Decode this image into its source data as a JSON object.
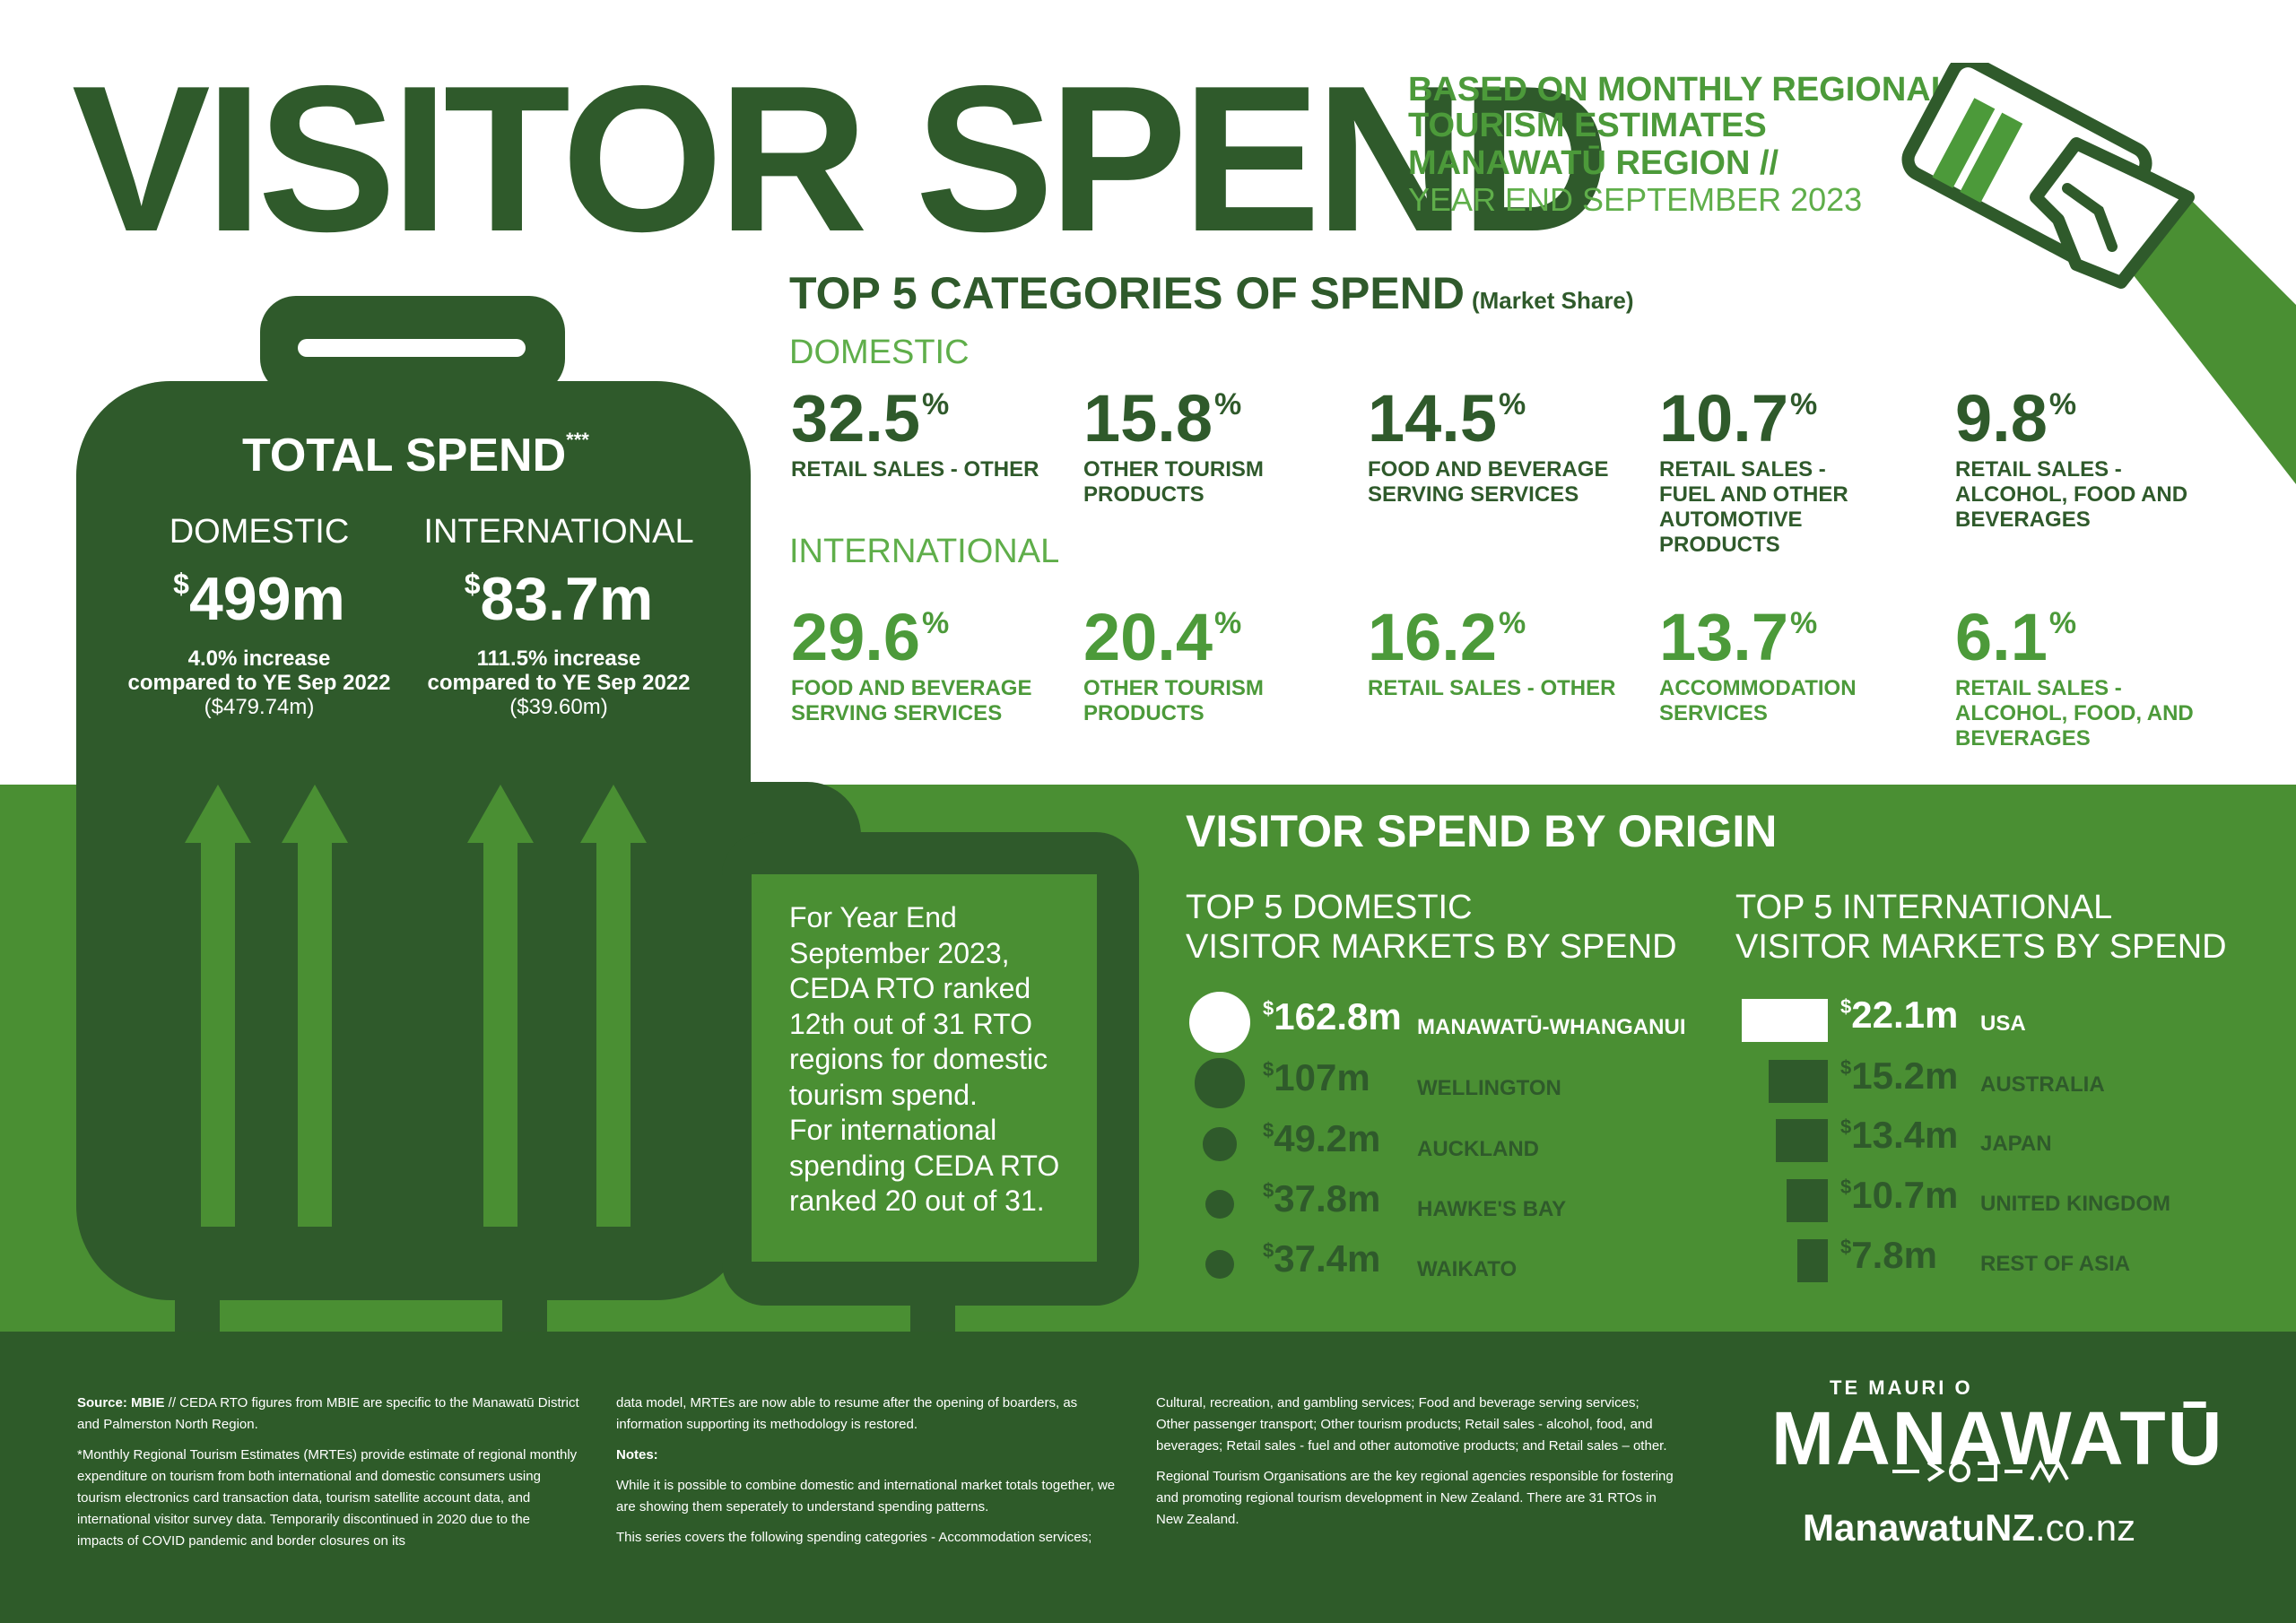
{
  "header": {
    "title": "VISITOR SPEND",
    "subtitle_line1": "BASED ON MONTHLY REGIONAL",
    "subtitle_line2": "TOURISM ESTIMATES",
    "subtitle_line3": "MANAWATŪ REGION //",
    "subtitle_line4": "YEAR END SEPTEMBER 2023",
    "icon": "card-in-hand-icon"
  },
  "colors": {
    "dark_green": "#2f5a2b",
    "mid_green": "#4a8f33",
    "accent_green": "#4c9a3a",
    "white": "#ffffff"
  },
  "total_spend": {
    "heading": "TOTAL SPEND",
    "heading_mark": "***",
    "domestic": {
      "label": "DOMESTIC",
      "currency": "$",
      "value": "499m",
      "change": "4.0% increase",
      "compare": "compared to YE Sep 2022",
      "previous": "($479.74m)"
    },
    "international": {
      "label": "INTERNATIONAL",
      "currency": "$",
      "value": "83.7m",
      "change": "111.5% increase",
      "compare": "compared to YE Sep 2022",
      "previous": "($39.60m)"
    }
  },
  "categories": {
    "heading": "TOP 5 CATEGORIES OF SPEND",
    "heading_note": "(Market Share)",
    "domestic_label": "DOMESTIC",
    "international_label": "INTERNATIONAL",
    "domestic": [
      {
        "value": "32.5",
        "unit": "%",
        "l1": "RETAIL SALES - OTHER",
        "l2": "",
        "l3": "",
        "l4": ""
      },
      {
        "value": "15.8",
        "unit": "%",
        "l1": "OTHER TOURISM",
        "l2": "PRODUCTS",
        "l3": "",
        "l4": ""
      },
      {
        "value": "14.5",
        "unit": "%",
        "l1": "FOOD AND BEVERAGE",
        "l2": "SERVING SERVICES",
        "l3": "",
        "l4": ""
      },
      {
        "value": "10.7",
        "unit": "%",
        "l1": "RETAIL SALES -",
        "l2": "FUEL AND OTHER",
        "l3": "AUTOMOTIVE",
        "l4": "PRODUCTS"
      },
      {
        "value": "9.8",
        "unit": "%",
        "l1": "RETAIL SALES -",
        "l2": "ALCOHOL, FOOD AND",
        "l3": "BEVERAGES",
        "l4": ""
      }
    ],
    "international": [
      {
        "value": "29.6",
        "unit": "%",
        "l1": "FOOD AND BEVERAGE",
        "l2": "SERVING SERVICES",
        "l3": "",
        "l4": ""
      },
      {
        "value": "20.4",
        "unit": "%",
        "l1": "OTHER TOURISM",
        "l2": "PRODUCTS",
        "l3": "",
        "l4": ""
      },
      {
        "value": "16.2",
        "unit": "%",
        "l1": "RETAIL SALES - OTHER",
        "l2": "",
        "l3": "",
        "l4": ""
      },
      {
        "value": "13.7",
        "unit": "%",
        "l1": "ACCOMMODATION",
        "l2": "SERVICES",
        "l3": "",
        "l4": ""
      },
      {
        "value": "6.1",
        "unit": "%",
        "l1": "RETAIL SALES -",
        "l2": "ALCOHOL, FOOD, AND",
        "l3": "BEVERAGES",
        "l4": ""
      }
    ]
  },
  "ranking": {
    "l1": "For Year End",
    "l2": "September 2023,",
    "l3": "CEDA RTO ranked",
    "l4": "12th out of 31 RTO",
    "l5": "regions for domestic",
    "l6": "tourism spend.",
    "l7": "For international",
    "l8": "spending CEDA RTO",
    "l9": "ranked 20 out of 31."
  },
  "origin": {
    "heading": "VISITOR SPEND BY ORIGIN",
    "domestic_sub1": "TOP 5 DOMESTIC",
    "domestic_sub2": "VISITOR MARKETS BY SPEND",
    "international_sub1": "TOP 5 INTERNATIONAL",
    "international_sub2": "VISITOR MARKETS BY SPEND",
    "domestic": [
      {
        "currency": "$",
        "value": "162.8m",
        "name": "MANAWATŪ-WHANGANUI",
        "amount": 162.8
      },
      {
        "currency": "$",
        "value": "107m",
        "name": "WELLINGTON",
        "amount": 107
      },
      {
        "currency": "$",
        "value": "49.2m",
        "name": "AUCKLAND",
        "amount": 49.2
      },
      {
        "currency": "$",
        "value": "37.8m",
        "name": "HAWKE'S BAY",
        "amount": 37.8
      },
      {
        "currency": "$",
        "value": "37.4m",
        "name": "WAIKATO",
        "amount": 37.4
      }
    ],
    "international": [
      {
        "currency": "$",
        "value": "22.1m",
        "name": "USA",
        "amount": 22.1
      },
      {
        "currency": "$",
        "value": "15.2m",
        "name": "AUSTRALIA",
        "amount": 15.2
      },
      {
        "currency": "$",
        "value": "13.4m",
        "name": "JAPAN",
        "amount": 13.4
      },
      {
        "currency": "$",
        "value": "10.7m",
        "name": "UNITED KINGDOM",
        "amount": 10.7
      },
      {
        "currency": "$",
        "value": "7.8m",
        "name": "REST OF ASIA",
        "amount": 7.8
      }
    ]
  },
  "footer": {
    "col1_source_label": "Source: MBIE",
    "col1_source_text": " // CEDA RTO figures from MBIE are specific to the Manawatū District and Palmerston North Region.",
    "col1_mrte": "*Monthly Regional Tourism Estimates (MRTEs) provide estimate of regional monthly expenditure on tourism from both international and domestic consumers using tourism electronics card transaction data, tourism satellite account data, and international visitor survey data. Temporarily discontinued in 2020 due to the impacts of COVID pandemic and border closures on its",
    "col2_p1": "data model, MRTEs are now able to resume after the opening of boarders, as information supporting its methodology is restored.",
    "col2_notes_label": "Notes:",
    "col2_p2": "While it is possible to combine domestic and international market totals together, we are showing them seperately to understand spending patterns.",
    "col2_p3": "This series covers the following spending categories - Accommodation services;",
    "col3_p1": "Cultural, recreation, and gambling services; Food and beverage serving services; Other passenger transport; Other tourism products; Retail sales - alcohol, food, and beverages; Retail sales - fuel and other automotive products; and Retail sales – other.",
    "col3_p2": "Regional Tourism Organisations are the key regional agencies responsible for fostering and promoting regional tourism development in New Zealand. There are 31 RTOs in New Zealand."
  },
  "logo": {
    "tagline": "TE MAURI O",
    "name": "MANAWATŪ",
    "website_bold": "ManawatuNZ",
    "website_rest": ".co.nz"
  }
}
